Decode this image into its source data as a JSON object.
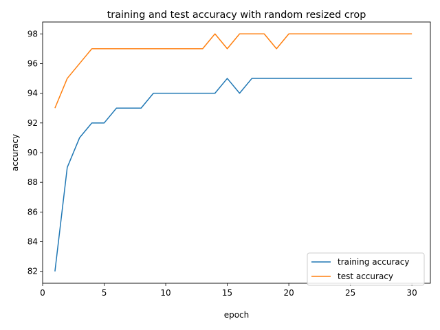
{
  "chart_data": {
    "type": "line",
    "title": "training and test accuracy with random resized crop",
    "xlabel": "epoch",
    "ylabel": "accuracy",
    "xlim": [
      0,
      31.5
    ],
    "ylim": [
      81.2,
      98.8
    ],
    "xticks": [
      0,
      5,
      10,
      15,
      20,
      25,
      30
    ],
    "yticks": [
      82,
      84,
      86,
      88,
      90,
      92,
      94,
      96,
      98
    ],
    "grid": false,
    "legend_position": "lower-right",
    "x": [
      1,
      2,
      3,
      4,
      5,
      6,
      7,
      8,
      9,
      10,
      11,
      12,
      13,
      14,
      15,
      16,
      17,
      18,
      19,
      20,
      21,
      22,
      23,
      24,
      25,
      26,
      27,
      28,
      29,
      30
    ],
    "series": [
      {
        "name": "training accuracy",
        "color": "#1f77b4",
        "values": [
          82,
          89,
          91,
          92,
          92,
          93,
          93,
          93,
          94,
          94,
          94,
          94,
          94,
          94,
          95,
          94,
          95,
          95,
          95,
          95,
          95,
          95,
          95,
          95,
          95,
          95,
          95,
          95,
          95,
          95
        ]
      },
      {
        "name": "test accuracy",
        "color": "#ff7f0e",
        "values": [
          93,
          95,
          96,
          97,
          97,
          97,
          97,
          97,
          97,
          97,
          97,
          97,
          97,
          98,
          97,
          98,
          98,
          98,
          97,
          98,
          98,
          98,
          98,
          98,
          98,
          98,
          98,
          98,
          98,
          98
        ]
      }
    ]
  }
}
